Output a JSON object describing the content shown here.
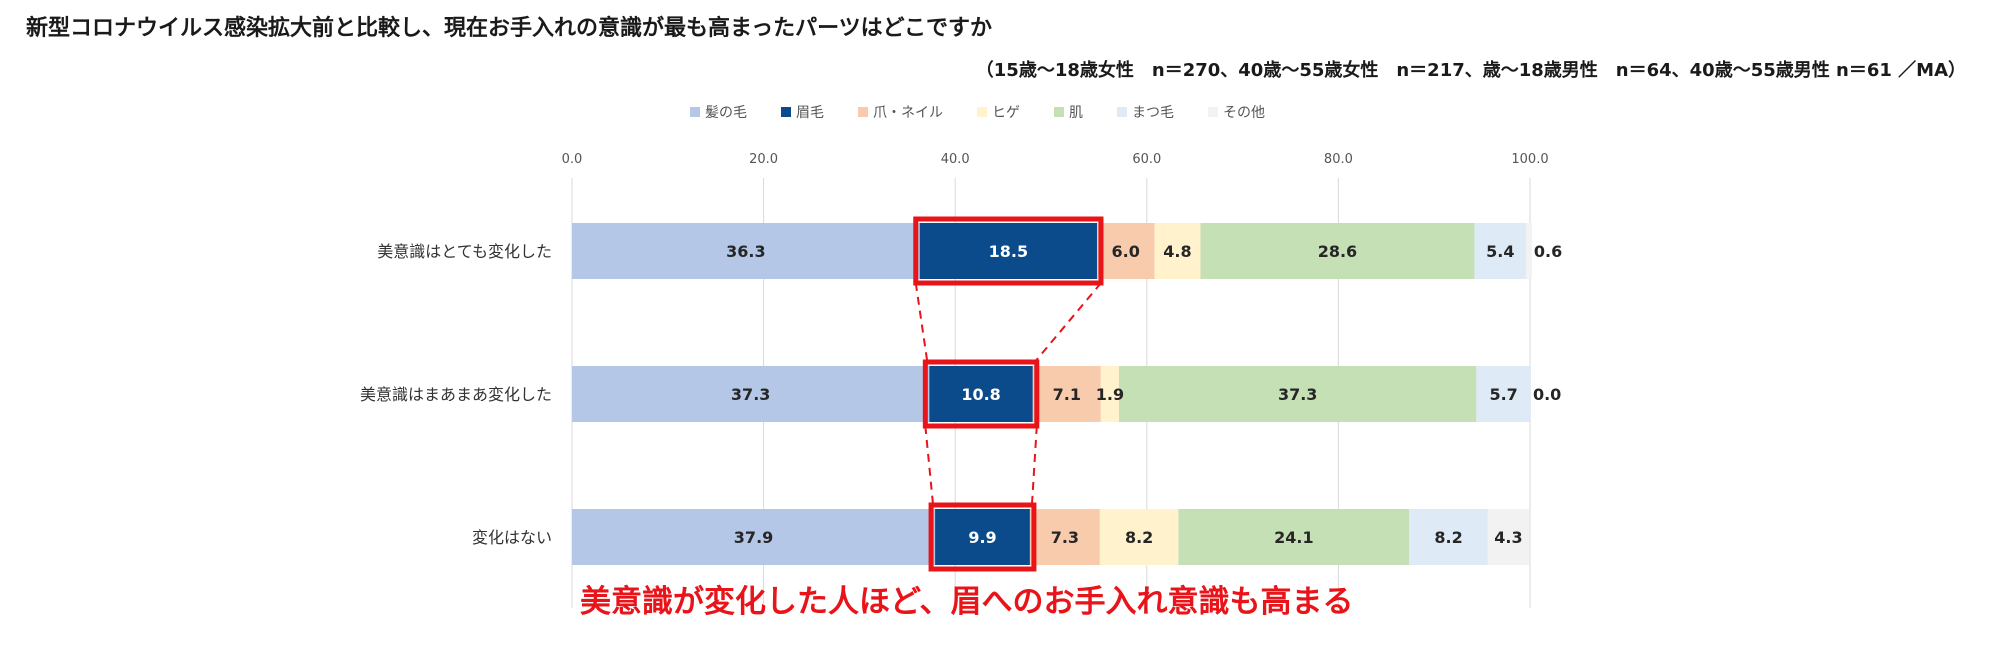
{
  "title": "新型コロナウイルス感染拡大前と比較し、現在お手入れの意識が最も高まったパーツはどこですか",
  "subtitle": "（15歳～18歳女性　n＝270、40歳～55歳女性　n＝217、歳～18歳男性　n＝64、40歳～55歳男性 n＝61 ／MA）",
  "annotation": "美意識が変化した人ほど、眉へのお手入れ意識も高まる",
  "colors": {
    "highlight": "#e8141a",
    "grid": "#d9d9d9"
  },
  "chart_data": {
    "type": "bar",
    "orientation": "horizontal",
    "stacked": true,
    "xlim": [
      0,
      100
    ],
    "x_ticks": [
      "0.0",
      "20.0",
      "40.0",
      "60.0",
      "80.0",
      "100.0"
    ],
    "grid": true,
    "legend_position": "top",
    "categories": [
      "美意識はとても変化した",
      "美意識はまあまあ変化した",
      "変化はない"
    ],
    "series": [
      {
        "name": "髪の毛",
        "color": "#b4c7e7",
        "text_color": "#262626",
        "values": [
          36.3,
          37.3,
          37.9
        ],
        "labels": [
          "36.3",
          "37.3",
          "37.9"
        ]
      },
      {
        "name": "眉毛",
        "color": "#0b4a8b",
        "text_color": "#ffffff",
        "values": [
          18.5,
          10.8,
          9.9
        ],
        "labels": [
          "18.5",
          "10.8",
          "9.9"
        ]
      },
      {
        "name": "爪・ネイル",
        "color": "#f8cbad",
        "text_color": "#262626",
        "values": [
          6.0,
          7.1,
          7.3
        ],
        "labels": [
          "6.0",
          "7.1",
          "7.3"
        ]
      },
      {
        "name": "ヒゲ",
        "color": "#fff2cc",
        "text_color": "#262626",
        "values": [
          4.8,
          1.9,
          8.2
        ],
        "labels": [
          "4.8",
          "1.9",
          "8.2"
        ]
      },
      {
        "name": "肌",
        "color": "#c5e0b4",
        "text_color": "#262626",
        "values": [
          28.6,
          37.3,
          24.1
        ],
        "labels": [
          "28.6",
          "37.3",
          "24.1"
        ]
      },
      {
        "name": "まつ毛",
        "color": "#deebf7",
        "text_color": "#262626",
        "values": [
          5.4,
          5.7,
          8.2
        ],
        "labels": [
          "5.4",
          "5.7",
          "8.2"
        ]
      },
      {
        "name": "その他",
        "color": "#f2f2f2",
        "text_color": "#262626",
        "values": [
          0.6,
          0.0,
          4.3
        ],
        "labels": [
          "0.6",
          "0.0",
          "4.3"
        ]
      }
    ],
    "highlight_series": "眉毛"
  }
}
